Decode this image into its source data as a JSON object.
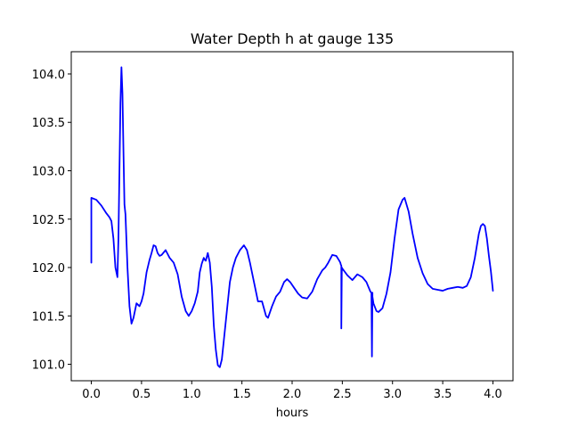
{
  "chart_data": {
    "type": "line",
    "title": "Water Depth h at gauge 135",
    "xlabel": "hours",
    "ylabel": "",
    "xlim": [
      -0.2,
      4.2
    ],
    "ylim": [
      100.83,
      104.23
    ],
    "xticks": [
      0.0,
      0.5,
      1.0,
      1.5,
      2.0,
      2.5,
      3.0,
      3.5,
      4.0
    ],
    "xtick_labels": [
      "0.0",
      "0.5",
      "1.0",
      "1.5",
      "2.0",
      "2.5",
      "3.0",
      "3.5",
      "4.0"
    ],
    "yticks": [
      101.0,
      101.5,
      102.0,
      102.5,
      103.0,
      103.5,
      104.0
    ],
    "ytick_labels": [
      "101.0",
      "101.5",
      "102.0",
      "102.5",
      "103.0",
      "103.5",
      "104.0"
    ],
    "grid": false,
    "series": [
      {
        "color": "#0000ff",
        "x": [
          0.0,
          0.0,
          0.05,
          0.1,
          0.15,
          0.18,
          0.2,
          0.22,
          0.24,
          0.26,
          0.27,
          0.28,
          0.29,
          0.3,
          0.31,
          0.32,
          0.33,
          0.34,
          0.36,
          0.38,
          0.4,
          0.42,
          0.45,
          0.48,
          0.5,
          0.52,
          0.55,
          0.58,
          0.6,
          0.62,
          0.64,
          0.66,
          0.68,
          0.7,
          0.74,
          0.78,
          0.82,
          0.86,
          0.9,
          0.94,
          0.97,
          1.0,
          1.03,
          1.06,
          1.08,
          1.1,
          1.12,
          1.13,
          1.14,
          1.16,
          1.18,
          1.2,
          1.22,
          1.24,
          1.26,
          1.28,
          1.3,
          1.32,
          1.35,
          1.38,
          1.41,
          1.44,
          1.48,
          1.52,
          1.55,
          1.58,
          1.62,
          1.66,
          1.7,
          1.74,
          1.76,
          1.8,
          1.84,
          1.88,
          1.92,
          1.95,
          1.98,
          2.02,
          2.06,
          2.1,
          2.15,
          2.2,
          2.25,
          2.3,
          2.33,
          2.36,
          2.4,
          2.44,
          2.47,
          2.48,
          2.485,
          2.49,
          2.49,
          2.495,
          2.5,
          2.55,
          2.6,
          2.65,
          2.7,
          2.74,
          2.76,
          2.78,
          2.79,
          2.795,
          2.8,
          2.8,
          2.81,
          2.84,
          2.86,
          2.9,
          2.94,
          2.98,
          3.02,
          3.06,
          3.1,
          3.12,
          3.16,
          3.2,
          3.25,
          3.3,
          3.35,
          3.4,
          3.45,
          3.5,
          3.55,
          3.6,
          3.65,
          3.7,
          3.74,
          3.78,
          3.82,
          3.86,
          3.88,
          3.9,
          3.92,
          3.94,
          3.96,
          3.98,
          4.0
        ],
        "y": [
          102.05,
          102.72,
          102.7,
          102.64,
          102.56,
          102.52,
          102.48,
          102.3,
          102.0,
          101.9,
          102.3,
          103.0,
          103.7,
          104.07,
          103.8,
          103.2,
          102.65,
          102.55,
          102.0,
          101.6,
          101.42,
          101.48,
          101.63,
          101.6,
          101.65,
          101.73,
          101.95,
          102.08,
          102.15,
          102.23,
          102.22,
          102.15,
          102.12,
          102.13,
          102.18,
          102.1,
          102.05,
          101.93,
          101.7,
          101.55,
          101.5,
          101.55,
          101.63,
          101.75,
          101.95,
          102.04,
          102.1,
          102.08,
          102.07,
          102.15,
          102.05,
          101.8,
          101.4,
          101.15,
          100.99,
          100.97,
          101.05,
          101.25,
          101.55,
          101.85,
          102.0,
          102.1,
          102.18,
          102.23,
          102.18,
          102.05,
          101.85,
          101.65,
          101.65,
          101.5,
          101.48,
          101.6,
          101.7,
          101.75,
          101.85,
          101.88,
          101.85,
          101.79,
          101.73,
          101.69,
          101.68,
          101.75,
          101.88,
          101.97,
          102.0,
          102.05,
          102.13,
          102.12,
          102.07,
          102.05,
          102.03,
          102.02,
          101.37,
          102.0,
          101.99,
          101.92,
          101.87,
          101.93,
          101.9,
          101.85,
          101.8,
          101.75,
          101.74,
          101.08,
          101.74,
          101.7,
          101.63,
          101.55,
          101.54,
          101.58,
          101.73,
          101.95,
          102.3,
          102.6,
          102.7,
          102.72,
          102.58,
          102.35,
          102.1,
          101.94,
          101.83,
          101.78,
          101.77,
          101.76,
          101.78,
          101.79,
          101.8,
          101.79,
          101.81,
          101.9,
          102.1,
          102.35,
          102.43,
          102.45,
          102.43,
          102.3,
          102.12,
          101.96,
          101.76
        ]
      }
    ]
  }
}
